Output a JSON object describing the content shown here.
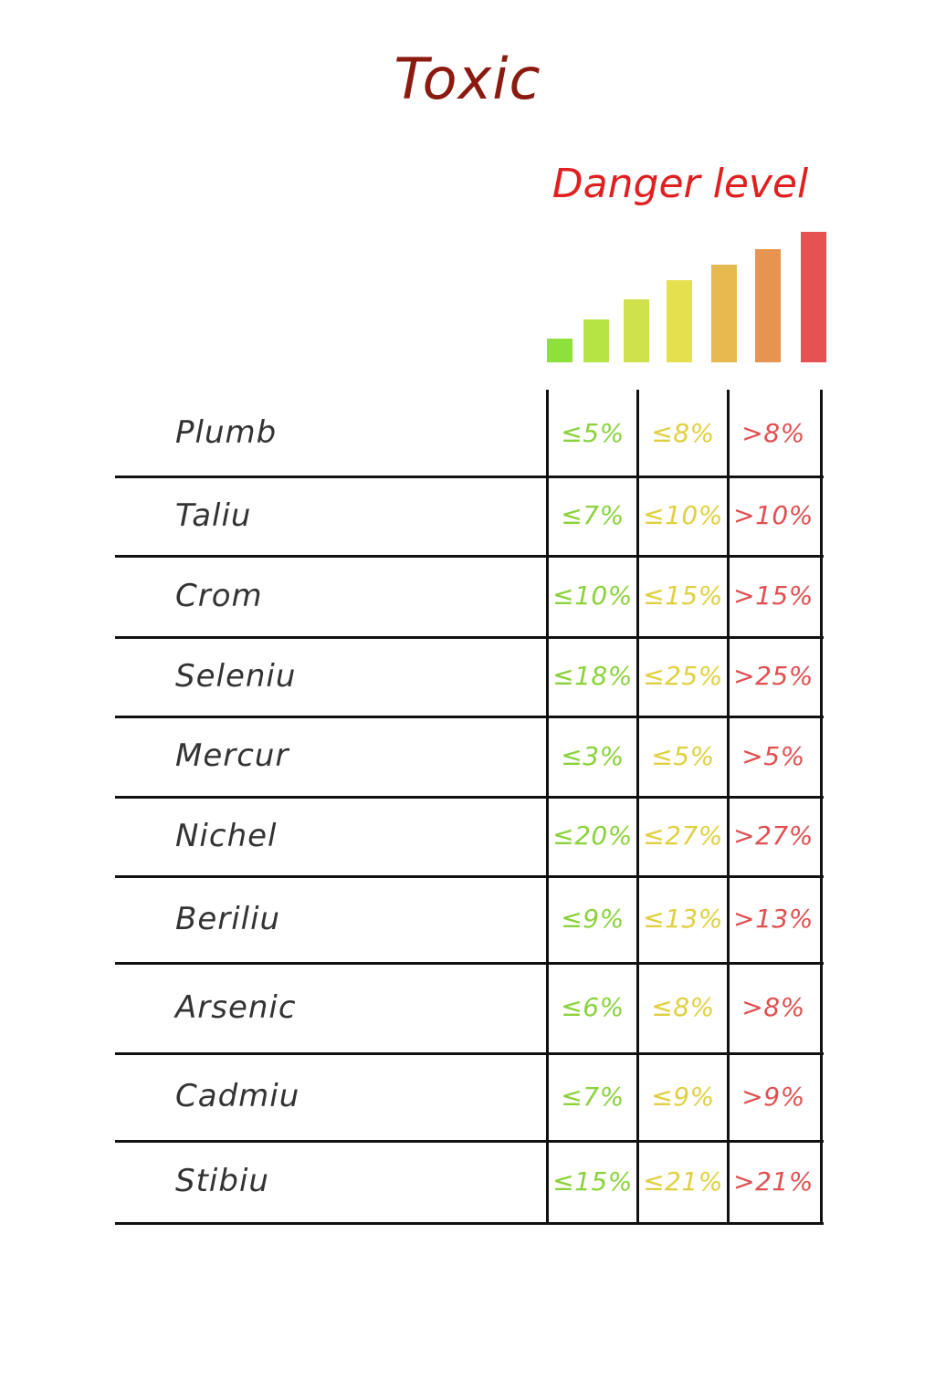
{
  "title": "Toxic",
  "legend": {
    "label": "Danger level",
    "levels": [
      {
        "level": 1,
        "color": "#8ee03a"
      },
      {
        "level": 2,
        "color": "#b6e445"
      },
      {
        "level": 3,
        "color": "#cfe24c"
      },
      {
        "level": 4,
        "color": "#e4e04e"
      },
      {
        "level": 5,
        "color": "#e6b94e"
      },
      {
        "level": 6,
        "color": "#e79352"
      },
      {
        "level": 7,
        "color": "#e55252"
      }
    ]
  },
  "colors": {
    "low": "#8ad23a",
    "medium": "#e0d040",
    "high": "#e05050",
    "title": "#8b1a10",
    "legend_label": "#e02020",
    "grid": "#111111",
    "row_label": "#333333"
  },
  "rows": [
    {
      "name": "Plumb",
      "low": "≤5%",
      "medium": "≤8%",
      "high": ">8%"
    },
    {
      "name": "Taliu",
      "low": "≤7%",
      "medium": "≤10%",
      "high": ">10%"
    },
    {
      "name": "Crom",
      "low": "≤10%",
      "medium": "≤15%",
      "high": ">15%"
    },
    {
      "name": "Seleniu",
      "low": "≤18%",
      "medium": "≤25%",
      "high": ">25%"
    },
    {
      "name": "Mercur",
      "low": "≤3%",
      "medium": "≤5%",
      "high": ">5%"
    },
    {
      "name": "Nichel",
      "low": "≤20%",
      "medium": "≤27%",
      "high": ">27%"
    },
    {
      "name": "Beriliu",
      "low": "≤9%",
      "medium": "≤13%",
      "high": ">13%"
    },
    {
      "name": "Arsenic",
      "low": "≤6%",
      "medium": "≤8%",
      "high": ">8%"
    },
    {
      "name": "Cadmiu",
      "low": "≤7%",
      "medium": "≤9%",
      "high": ">9%"
    },
    {
      "name": "Stibiu",
      "low": "≤15%",
      "medium": "≤21%",
      "high": ">21%"
    }
  ]
}
